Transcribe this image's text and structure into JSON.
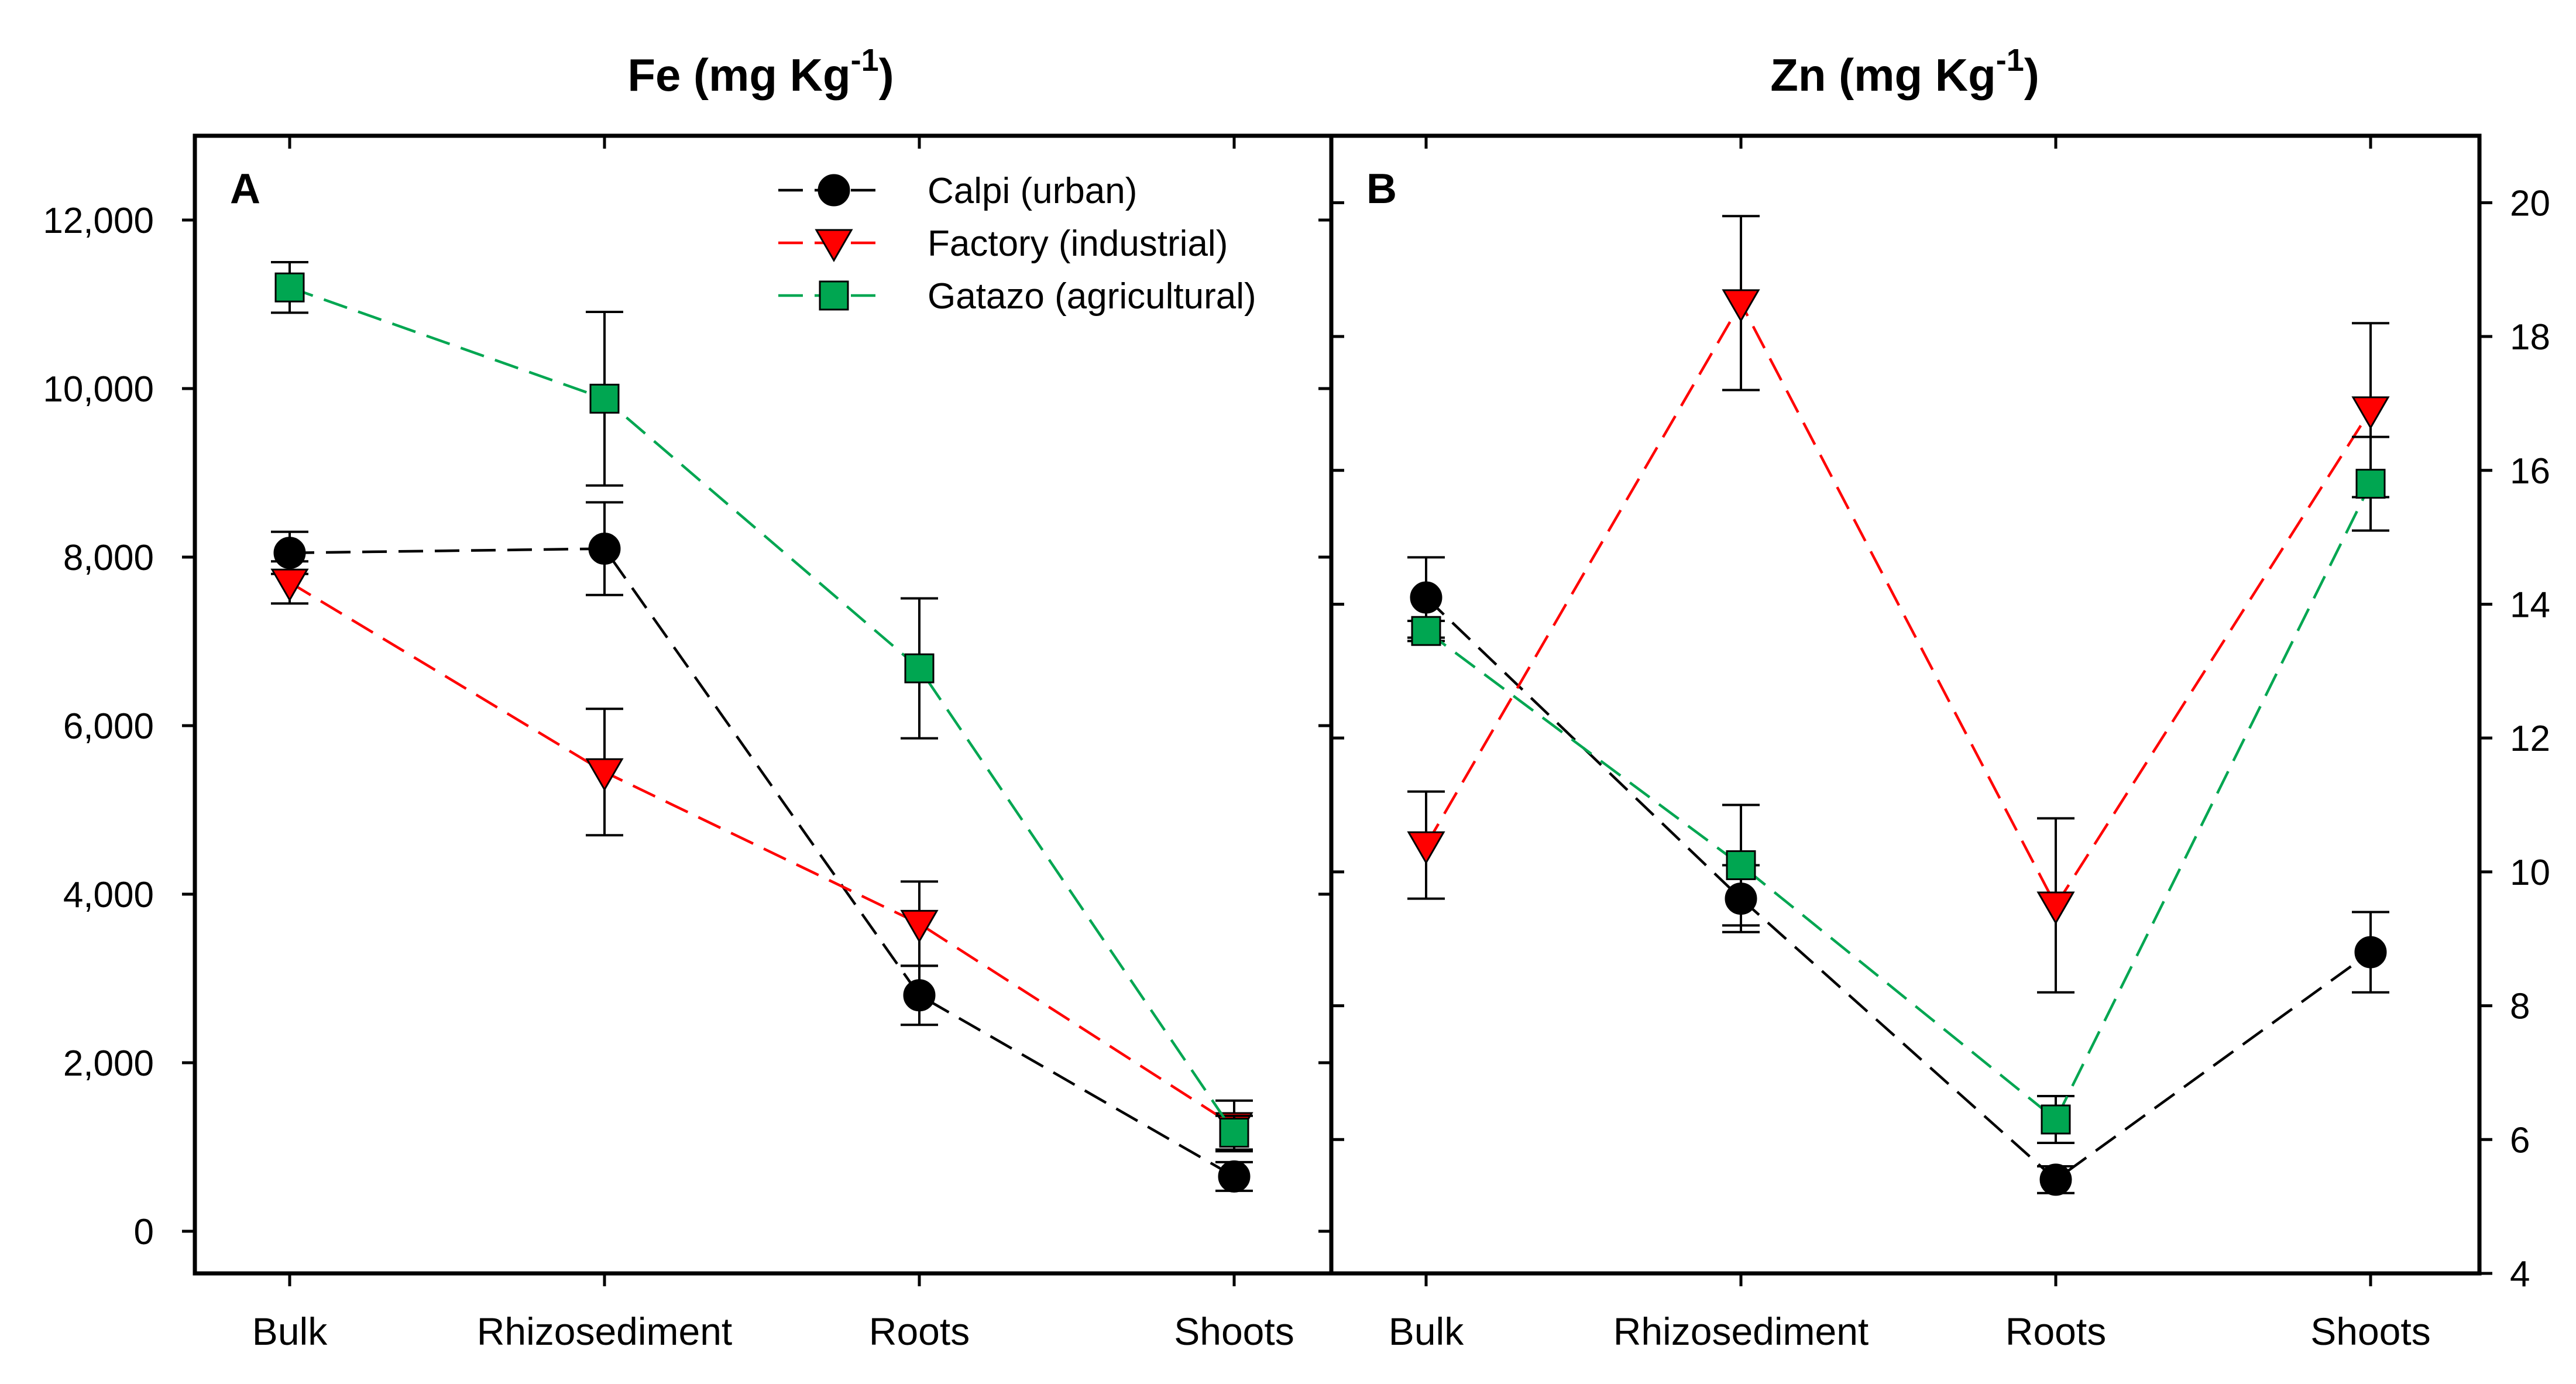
{
  "chart_data": [
    {
      "type": "line",
      "panel": "A",
      "title": "Fe (mg Kg",
      "title_sup": "-1",
      "title_close": ")",
      "y_axis_side": "left",
      "ylim": [
        -500,
        13000
      ],
      "yticks": [
        0,
        2000,
        4000,
        6000,
        8000,
        10000,
        12000
      ],
      "ytick_labels": [
        "0",
        "2,000",
        "4,000",
        "6,000",
        "8,000",
        "10,000",
        "12,000"
      ],
      "categories": [
        "Bulk",
        "Rhizosediment",
        "Roots",
        "Shoots"
      ],
      "series": [
        {
          "name": "Calpi (urban)",
          "color": "#000000",
          "marker": "circle",
          "values": [
            8050,
            8100,
            2800,
            650
          ],
          "errors": [
            250,
            550,
            350,
            170
          ]
        },
        {
          "name": "Factory  (industrial)",
          "color": "#ff0000",
          "marker": "triangle-down",
          "values": [
            7700,
            5450,
            3650,
            1250
          ],
          "errors": [
            250,
            750,
            500,
            300
          ]
        },
        {
          "name": "Gatazo (agricultural)",
          "color": "#00a651",
          "marker": "square",
          "values": [
            11200,
            9880,
            6680,
            1170
          ],
          "errors": [
            300,
            1030,
            830,
            200
          ]
        }
      ]
    },
    {
      "type": "line",
      "panel": "B",
      "title": "Zn (mg Kg",
      "title_sup": "-1",
      "title_close": ")",
      "y_axis_side": "right",
      "ylim": [
        4,
        21
      ],
      "yticks": [
        4,
        6,
        8,
        10,
        12,
        14,
        16,
        18,
        20
      ],
      "ytick_labels": [
        "4",
        "6",
        "8",
        "10",
        "12",
        "14",
        "16",
        "18",
        "20"
      ],
      "categories": [
        "Bulk",
        "Rhizosediment",
        "Roots",
        "Shoots"
      ],
      "series": [
        {
          "name": "Calpi (urban)",
          "color": "#000000",
          "marker": "circle",
          "values": [
            14.1,
            9.6,
            5.4,
            8.8
          ],
          "errors": [
            0.6,
            0.5,
            0.2,
            0.6
          ]
        },
        {
          "name": "Factory  (industrial)",
          "color": "#ff0000",
          "marker": "triangle-down",
          "values": [
            10.4,
            18.5,
            9.5,
            16.9
          ],
          "errors": [
            0.8,
            1.3,
            1.3,
            1.3
          ]
        },
        {
          "name": "Gatazo (agricultural)",
          "color": "#00a651",
          "marker": "square",
          "values": [
            13.6,
            10.1,
            6.3,
            15.8
          ],
          "errors": [
            0.15,
            0.9,
            0.35,
            0.7
          ]
        }
      ]
    }
  ]
}
